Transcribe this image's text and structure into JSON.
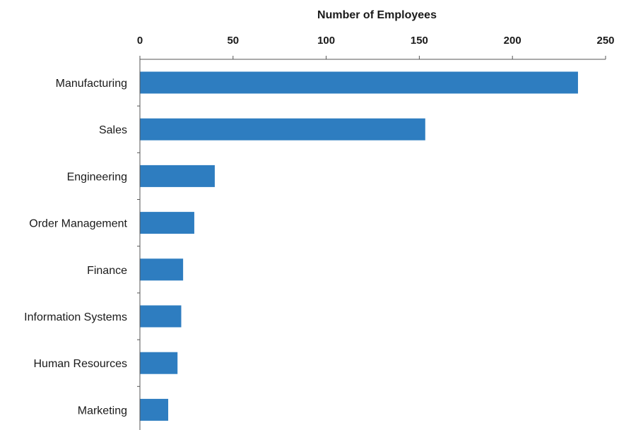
{
  "chart_data": {
    "type": "bar",
    "orientation": "horizontal",
    "title": "",
    "xlabel": "Number of Employees",
    "ylabel": "",
    "xaxis_position": "top",
    "xlim": [
      0,
      250
    ],
    "xticks": [
      0,
      50,
      100,
      150,
      200,
      250
    ],
    "grid": false,
    "legend": "none",
    "bar_color": "#2e7dc0",
    "categories": [
      "Manufacturing",
      "Sales",
      "Engineering",
      "Order Management",
      "Finance",
      "Information Systems",
      "Human Resources",
      "Marketing"
    ],
    "values": [
      235,
      153,
      40,
      29,
      23,
      22,
      20,
      15
    ]
  }
}
